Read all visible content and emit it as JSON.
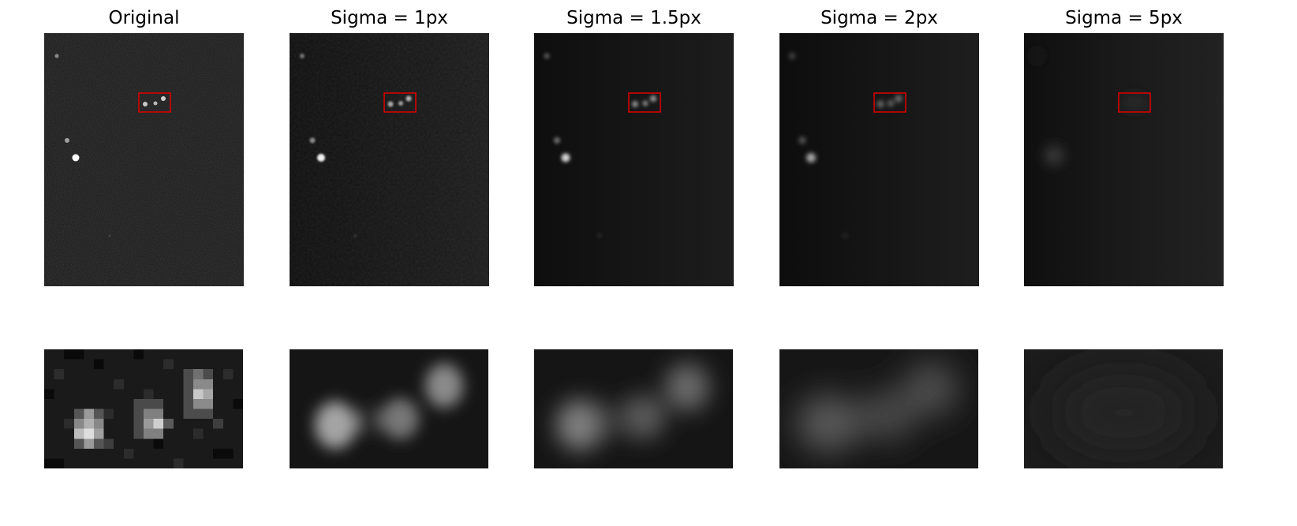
{
  "figure": {
    "panels": [
      {
        "title": "Original",
        "sigma": 0
      },
      {
        "title": "Sigma = 1px",
        "sigma": 1
      },
      {
        "title": "Sigma = 1.5px",
        "sigma": 1.5
      },
      {
        "title": "Sigma = 2px",
        "sigma": 2
      },
      {
        "title": "Sigma = 5px",
        "sigma": 5
      }
    ],
    "colors": {
      "roi_box": "#e00000",
      "background": "#111111",
      "spot": "#ffffff"
    }
  }
}
